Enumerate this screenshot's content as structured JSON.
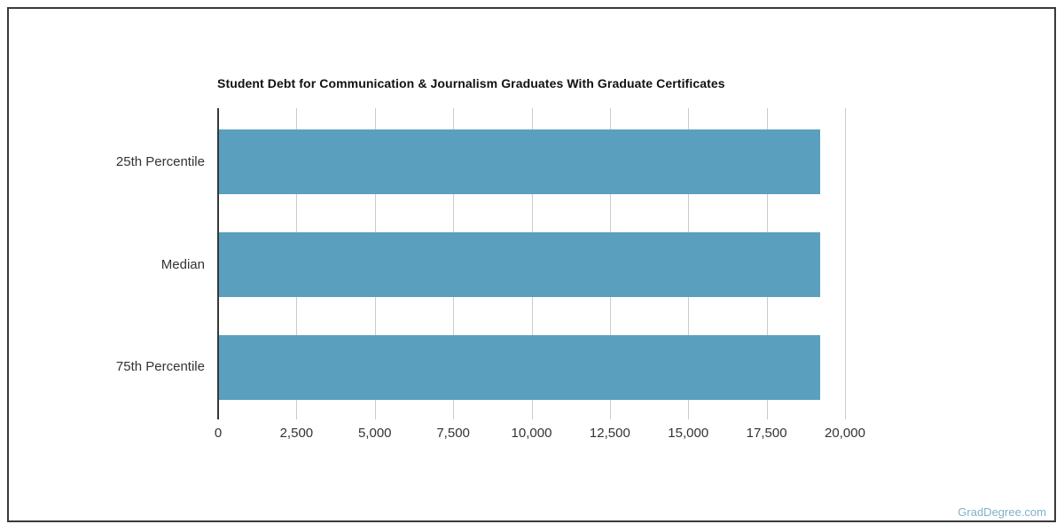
{
  "chart_data": {
    "type": "bar",
    "orientation": "horizontal",
    "title": "Student Debt for Communication & Journalism Graduates With Graduate Certificates",
    "categories": [
      "25th Percentile",
      "Median",
      "75th Percentile"
    ],
    "values": [
      19220,
      19220,
      19220
    ],
    "xlabel": "",
    "ylabel": "",
    "xlim": [
      0,
      20000
    ],
    "xticks": {
      "values": [
        0,
        2500,
        5000,
        7500,
        10000,
        12500,
        15000,
        17500,
        20000
      ],
      "labels": [
        "0",
        "2,500",
        "5,000",
        "7,500",
        "10,000",
        "12,500",
        "15,000",
        "17,500",
        "20,000"
      ]
    },
    "grid": true,
    "legend": null,
    "bar_color": "#5A9FBD",
    "grid_color": "#cccccc",
    "axis_color": "#383838",
    "label_color": "#333333",
    "title_color": "#111111"
  },
  "watermark": {
    "text": "GradDegree.com",
    "color": "#7FB2C8"
  }
}
